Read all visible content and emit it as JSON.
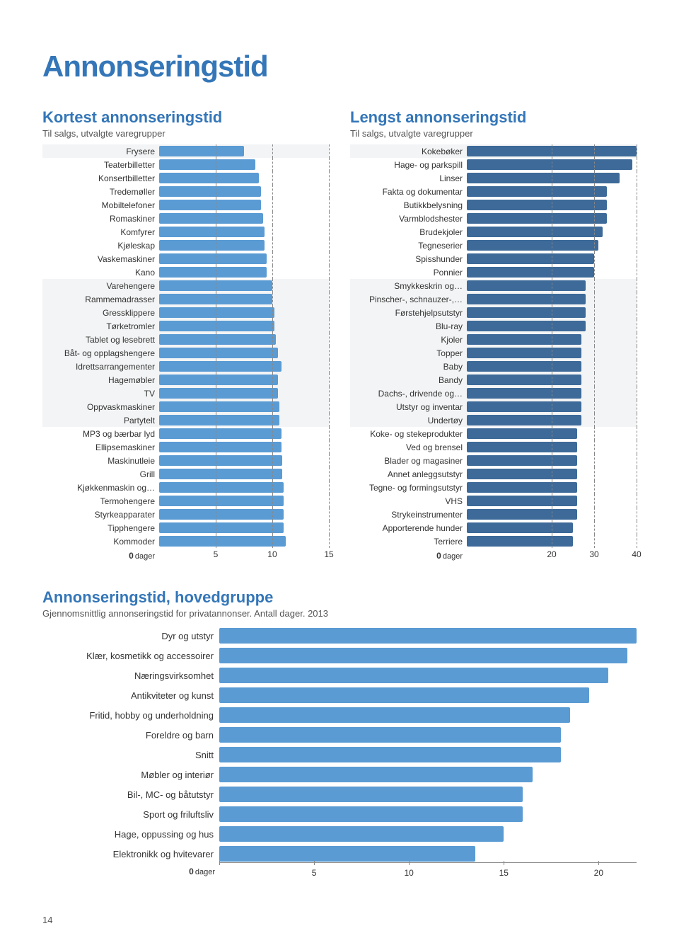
{
  "page": {
    "title": "Annonseringstid",
    "page_number": "14"
  },
  "colors": {
    "light_bar": "#5a9bd4",
    "dark_bar": "#3d6a98",
    "shade_bg": "#f3f4f5",
    "title_color": "#3476b8"
  },
  "kortest": {
    "title": "Kortest annonseringstid",
    "subtitle": "Til salgs, utvalgte varegrupper",
    "xmax": 15,
    "ticks": [
      0,
      5,
      10,
      15
    ],
    "axis_zero": "0",
    "axis_unit": "dager",
    "bar_color": "#5a9bd4",
    "items": [
      {
        "label": "Frysere",
        "value": 7.5,
        "shaded": true
      },
      {
        "label": "Teaterbilletter",
        "value": 8.5,
        "shaded": false
      },
      {
        "label": "Konsertbilletter",
        "value": 8.8,
        "shaded": false
      },
      {
        "label": "Tredemøller",
        "value": 9.0,
        "shaded": false
      },
      {
        "label": "Mobiltelefoner",
        "value": 9.0,
        "shaded": false
      },
      {
        "label": "Romaskiner",
        "value": 9.2,
        "shaded": false
      },
      {
        "label": "Komfyrer",
        "value": 9.3,
        "shaded": false
      },
      {
        "label": "Kjøleskap",
        "value": 9.3,
        "shaded": false
      },
      {
        "label": "Vaskemaskiner",
        "value": 9.5,
        "shaded": false
      },
      {
        "label": "Kano",
        "value": 9.5,
        "shaded": false
      },
      {
        "label": "Varehengere",
        "value": 10.0,
        "shaded": true
      },
      {
        "label": "Rammemadrasser",
        "value": 10.0,
        "shaded": true
      },
      {
        "label": "Gressklippere",
        "value": 10.2,
        "shaded": true
      },
      {
        "label": "Tørketromler",
        "value": 10.2,
        "shaded": true
      },
      {
        "label": "Tablet og lesebrett",
        "value": 10.3,
        "shaded": true
      },
      {
        "label": "Båt- og opplagshengere",
        "value": 10.5,
        "shaded": true
      },
      {
        "label": "Idrettsarrangementer",
        "value": 10.8,
        "shaded": true
      },
      {
        "label": "Hagemøbler",
        "value": 10.5,
        "shaded": true
      },
      {
        "label": "TV",
        "value": 10.5,
        "shaded": true
      },
      {
        "label": "Oppvaskmaskiner",
        "value": 10.6,
        "shaded": true
      },
      {
        "label": "Partytelt",
        "value": 10.6,
        "shaded": true
      },
      {
        "label": "MP3 og bærbar lyd",
        "value": 10.8,
        "shaded": false
      },
      {
        "label": "Ellipsemaskiner",
        "value": 10.8,
        "shaded": false
      },
      {
        "label": "Maskinutleie",
        "value": 10.9,
        "shaded": false
      },
      {
        "label": "Grill",
        "value": 10.9,
        "shaded": false
      },
      {
        "label": "Kjøkkenmaskin og…",
        "value": 11.0,
        "shaded": false
      },
      {
        "label": "Termohengere",
        "value": 11.0,
        "shaded": false
      },
      {
        "label": "Styrkeapparater",
        "value": 11.0,
        "shaded": false
      },
      {
        "label": "Tipphengere",
        "value": 11.0,
        "shaded": false
      },
      {
        "label": "Kommoder",
        "value": 11.2,
        "shaded": false
      }
    ]
  },
  "lengst": {
    "title": "Lengst annonseringstid",
    "subtitle": "Til salgs, utvalgte varegrupper",
    "xmax": 40,
    "ticks": [
      0,
      20,
      30,
      40
    ],
    "axis_zero": "0",
    "axis_unit": "dager",
    "bar_color": "#3d6a98",
    "items": [
      {
        "label": "Kokebøker",
        "value": 40,
        "shaded": true
      },
      {
        "label": "Hage- og parkspill",
        "value": 39,
        "shaded": false
      },
      {
        "label": "Linser",
        "value": 36,
        "shaded": false
      },
      {
        "label": "Fakta og dokumentar",
        "value": 33,
        "shaded": false
      },
      {
        "label": "Butikkbelysning",
        "value": 33,
        "shaded": false
      },
      {
        "label": "Varmblodshester",
        "value": 33,
        "shaded": false
      },
      {
        "label": "Brudekjoler",
        "value": 32,
        "shaded": false
      },
      {
        "label": "Tegneserier",
        "value": 31,
        "shaded": false
      },
      {
        "label": "Spisshunder",
        "value": 30,
        "shaded": false
      },
      {
        "label": "Ponnier",
        "value": 30,
        "shaded": false
      },
      {
        "label": "Smykkeskrin og…",
        "value": 28,
        "shaded": true
      },
      {
        "label": "Pinscher-, schnauzer-,…",
        "value": 28,
        "shaded": true
      },
      {
        "label": "Førstehjelpsutstyr",
        "value": 28,
        "shaded": true
      },
      {
        "label": "Blu-ray",
        "value": 28,
        "shaded": true
      },
      {
        "label": "Kjoler",
        "value": 27,
        "shaded": true
      },
      {
        "label": "Topper",
        "value": 27,
        "shaded": true
      },
      {
        "label": "Baby",
        "value": 27,
        "shaded": true
      },
      {
        "label": "Bandy",
        "value": 27,
        "shaded": true
      },
      {
        "label": "Dachs-, drivende og…",
        "value": 27,
        "shaded": true
      },
      {
        "label": "Utstyr og inventar",
        "value": 27,
        "shaded": true
      },
      {
        "label": "Undertøy",
        "value": 27,
        "shaded": true
      },
      {
        "label": "Koke- og stekeprodukter",
        "value": 26,
        "shaded": false
      },
      {
        "label": "Ved og brensel",
        "value": 26,
        "shaded": false
      },
      {
        "label": "Blader og magasiner",
        "value": 26,
        "shaded": false
      },
      {
        "label": "Annet anleggsutstyr",
        "value": 26,
        "shaded": false
      },
      {
        "label": "Tegne- og formingsutstyr",
        "value": 26,
        "shaded": false
      },
      {
        "label": "VHS",
        "value": 26,
        "shaded": false
      },
      {
        "label": "Strykeinstrumenter",
        "value": 26,
        "shaded": false
      },
      {
        "label": "Apporterende hunder",
        "value": 25,
        "shaded": false
      },
      {
        "label": "Terriere",
        "value": 25,
        "shaded": false
      }
    ]
  },
  "hoved": {
    "title": "Annonseringstid, hovedgruppe",
    "subtitle": "Gjennomsnittlig annonseringstid for privatannonser. Antall dager. 2013",
    "xmax": 22,
    "ticks": [
      0,
      5,
      10,
      15,
      20
    ],
    "axis_zero": "0",
    "axis_unit": "dager",
    "bar_color": "#5a9bd4",
    "items": [
      {
        "label": "Dyr og utstyr",
        "value": 22
      },
      {
        "label": "Klær, kosmetikk og accessoirer",
        "value": 21.5
      },
      {
        "label": "Næringsvirksomhet",
        "value": 20.5
      },
      {
        "label": "Antikviteter og kunst",
        "value": 19.5
      },
      {
        "label": "Fritid, hobby og underholdning",
        "value": 18.5
      },
      {
        "label": "Foreldre og barn",
        "value": 18
      },
      {
        "label": "Snitt",
        "value": 18
      },
      {
        "label": "Møbler og interiør",
        "value": 16.5
      },
      {
        "label": "Bil-, MC- og båtutstyr",
        "value": 16
      },
      {
        "label": "Sport og friluftsliv",
        "value": 16
      },
      {
        "label": "Hage, oppussing og hus",
        "value": 15
      },
      {
        "label": "Elektronikk og hvitevarer",
        "value": 13.5
      }
    ]
  }
}
